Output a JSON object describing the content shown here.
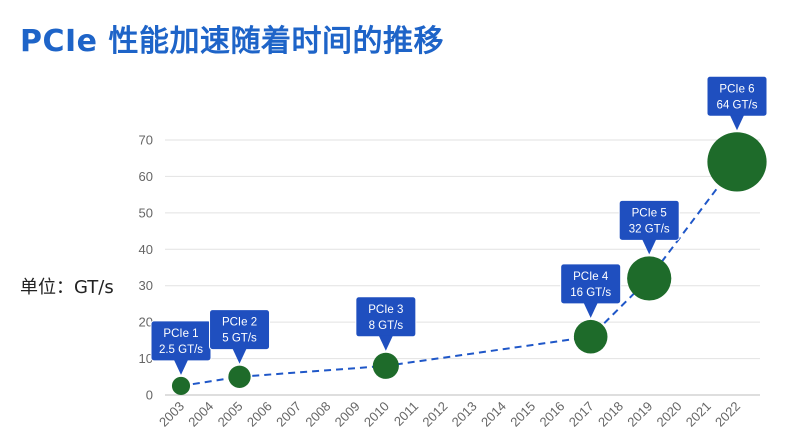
{
  "page": {
    "title": "PCIe 性能加速随着时间的推移",
    "unit_label": "单位：GT/s"
  },
  "chart_data": {
    "type": "scatter",
    "title": "PCIe 性能加速随着时间的推移",
    "ylabel": "单位：GT/s",
    "xlim": [
      2003,
      2022
    ],
    "ylim": [
      0,
      70
    ],
    "y_ticks": [
      0,
      10,
      20,
      30,
      40,
      50,
      60,
      70
    ],
    "x_ticks": [
      2003,
      2004,
      2005,
      2006,
      2007,
      2008,
      2009,
      2010,
      2011,
      2012,
      2013,
      2014,
      2015,
      2016,
      2017,
      2018,
      2019,
      2020,
      2021,
      2022
    ],
    "grid": true,
    "connector": "dashed",
    "colors": {
      "point": "#1e6b2a",
      "line": "#1f57c8",
      "callout": "#1f4fbf",
      "title": "#1e64c8"
    },
    "points": [
      {
        "x": 2003,
        "y": 2.5,
        "label": "PCIe 1",
        "value_label": "2.5 GT/s"
      },
      {
        "x": 2005,
        "y": 5,
        "label": "PCIe 2",
        "value_label": "5 GT/s"
      },
      {
        "x": 2010,
        "y": 8,
        "label": "PCIe 3",
        "value_label": "8 GT/s"
      },
      {
        "x": 2017,
        "y": 16,
        "label": "PCIe 4",
        "value_label": "16 GT/s"
      },
      {
        "x": 2019,
        "y": 32,
        "label": "PCIe 5",
        "value_label": "32 GT/s"
      },
      {
        "x": 2022,
        "y": 64,
        "label": "PCIe 6",
        "value_label": "64 GT/s"
      }
    ]
  }
}
